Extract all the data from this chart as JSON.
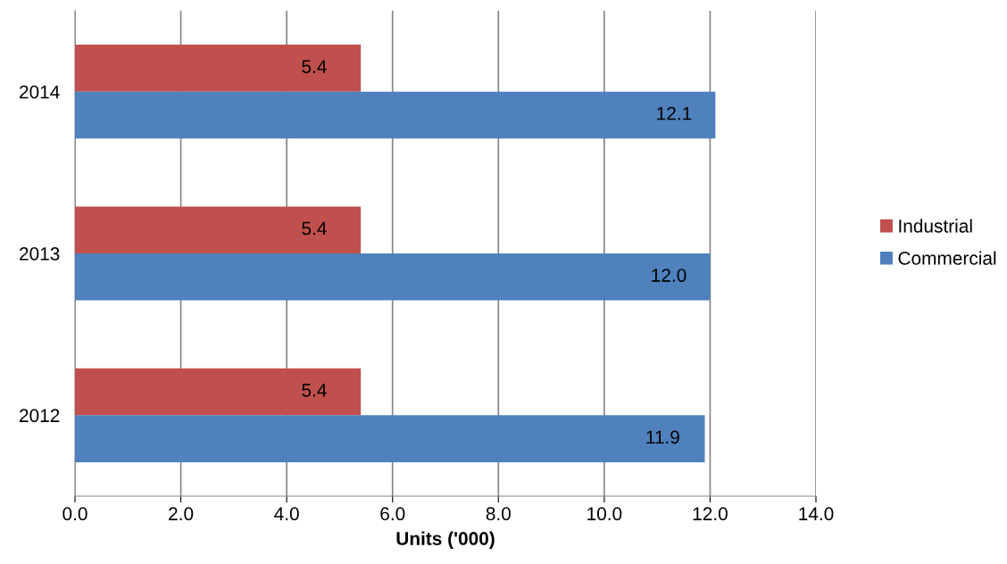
{
  "chart_data": {
    "type": "bar",
    "orientation": "horizontal",
    "xlabel": "Units ('000)",
    "categories": [
      "2014",
      "2013",
      "2012"
    ],
    "series": [
      {
        "name": "Industrial",
        "color": "#c0504d",
        "values": [
          5.4,
          5.4,
          5.4
        ],
        "value_labels": [
          "5.4",
          "5.4",
          "5.4"
        ]
      },
      {
        "name": "Commercial",
        "color": "#4f81bd",
        "values": [
          12.1,
          12.0,
          11.9
        ],
        "value_labels": [
          "12.1",
          "12.0",
          "11.9"
        ]
      }
    ],
    "xlim": [
      0,
      14
    ],
    "xticks": [
      {
        "value": 0,
        "label": "0.0"
      },
      {
        "value": 2,
        "label": "2.0"
      },
      {
        "value": 4,
        "label": "4.0"
      },
      {
        "value": 6,
        "label": "6.0"
      },
      {
        "value": 8,
        "label": "8.0"
      },
      {
        "value": 10,
        "label": "10.0"
      },
      {
        "value": 12,
        "label": "12.0"
      },
      {
        "value": 14,
        "label": "14.0"
      }
    ],
    "grid": "x",
    "legend": "right"
  }
}
